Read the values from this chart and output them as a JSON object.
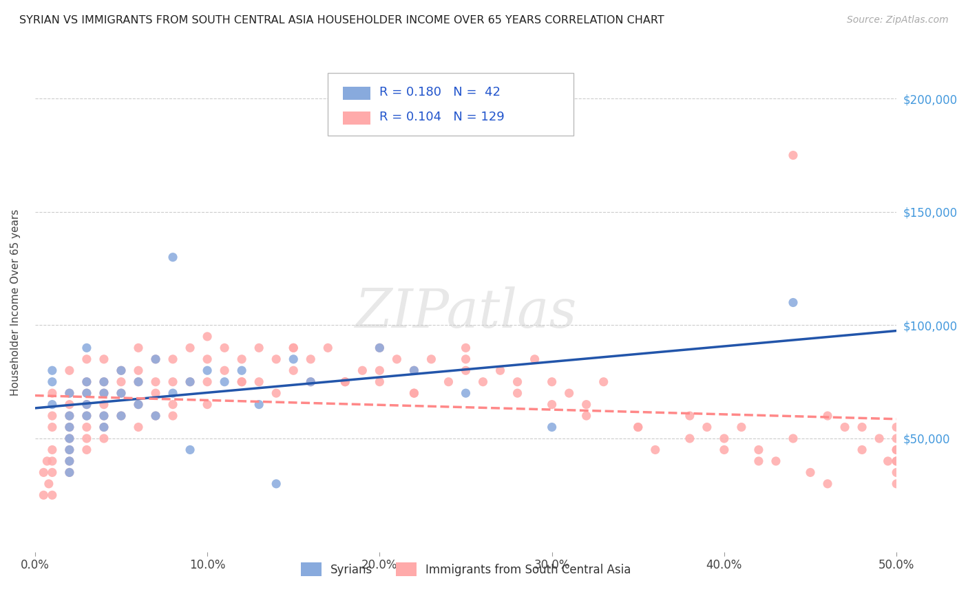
{
  "title": "SYRIAN VS IMMIGRANTS FROM SOUTH CENTRAL ASIA HOUSEHOLDER INCOME OVER 65 YEARS CORRELATION CHART",
  "source": "Source: ZipAtlas.com",
  "ylabel": "Householder Income Over 65 years",
  "r_syrian": 0.18,
  "n_syrian": 42,
  "r_south_central": 0.104,
  "n_south_central": 129,
  "xlim": [
    0.0,
    0.5
  ],
  "ylim": [
    0,
    220000
  ],
  "yticks": [
    0,
    50000,
    100000,
    150000,
    200000
  ],
  "ytick_labels": [
    "",
    "$50,000",
    "$100,000",
    "$150,000",
    "$200,000"
  ],
  "xtick_labels": [
    "0.0%",
    "10.0%",
    "20.0%",
    "30.0%",
    "40.0%",
    "50.0%"
  ],
  "xticks": [
    0.0,
    0.1,
    0.2,
    0.3,
    0.4,
    0.5
  ],
  "color_syrian": "#88AADD",
  "color_south_central": "#FFAAAA",
  "color_line_syrian": "#2255AA",
  "color_line_south_central": "#FF8888",
  "syrian_x": [
    0.01,
    0.01,
    0.01,
    0.02,
    0.02,
    0.02,
    0.02,
    0.02,
    0.02,
    0.02,
    0.03,
    0.03,
    0.03,
    0.03,
    0.03,
    0.04,
    0.04,
    0.04,
    0.04,
    0.05,
    0.05,
    0.05,
    0.06,
    0.06,
    0.07,
    0.07,
    0.08,
    0.08,
    0.09,
    0.09,
    0.1,
    0.11,
    0.12,
    0.13,
    0.14,
    0.15,
    0.16,
    0.2,
    0.22,
    0.25,
    0.3,
    0.44
  ],
  "syrian_y": [
    65000,
    80000,
    75000,
    70000,
    60000,
    55000,
    50000,
    45000,
    40000,
    35000,
    90000,
    75000,
    70000,
    65000,
    60000,
    75000,
    70000,
    60000,
    55000,
    80000,
    70000,
    60000,
    75000,
    65000,
    85000,
    60000,
    130000,
    70000,
    75000,
    45000,
    80000,
    75000,
    80000,
    65000,
    30000,
    85000,
    75000,
    90000,
    80000,
    70000,
    55000,
    110000
  ],
  "south_central_x": [
    0.005,
    0.005,
    0.007,
    0.008,
    0.01,
    0.01,
    0.01,
    0.01,
    0.01,
    0.01,
    0.01,
    0.02,
    0.02,
    0.02,
    0.02,
    0.02,
    0.02,
    0.02,
    0.02,
    0.02,
    0.03,
    0.03,
    0.03,
    0.03,
    0.03,
    0.03,
    0.03,
    0.04,
    0.04,
    0.04,
    0.04,
    0.04,
    0.04,
    0.05,
    0.05,
    0.05,
    0.05,
    0.06,
    0.06,
    0.06,
    0.06,
    0.07,
    0.07,
    0.07,
    0.07,
    0.08,
    0.08,
    0.08,
    0.09,
    0.09,
    0.1,
    0.1,
    0.1,
    0.11,
    0.11,
    0.12,
    0.12,
    0.13,
    0.13,
    0.14,
    0.14,
    0.15,
    0.15,
    0.16,
    0.16,
    0.17,
    0.18,
    0.19,
    0.2,
    0.2,
    0.21,
    0.22,
    0.22,
    0.23,
    0.24,
    0.25,
    0.25,
    0.26,
    0.27,
    0.28,
    0.29,
    0.3,
    0.31,
    0.32,
    0.33,
    0.35,
    0.36,
    0.38,
    0.39,
    0.4,
    0.41,
    0.42,
    0.43,
    0.44,
    0.45,
    0.46,
    0.47,
    0.48,
    0.49,
    0.495,
    0.15,
    0.18,
    0.2,
    0.22,
    0.1,
    0.12,
    0.08,
    0.06,
    0.04,
    0.03,
    0.25,
    0.28,
    0.3,
    0.32,
    0.35,
    0.38,
    0.4,
    0.42,
    0.44,
    0.46,
    0.48,
    0.5,
    0.5,
    0.5,
    0.5,
    0.5,
    0.5,
    0.5,
    0.5
  ],
  "south_central_y": [
    35000,
    25000,
    40000,
    30000,
    70000,
    60000,
    55000,
    45000,
    40000,
    35000,
    25000,
    80000,
    70000,
    65000,
    60000,
    55000,
    50000,
    45000,
    40000,
    35000,
    85000,
    75000,
    70000,
    65000,
    60000,
    55000,
    50000,
    85000,
    75000,
    70000,
    65000,
    60000,
    55000,
    80000,
    75000,
    70000,
    60000,
    90000,
    80000,
    75000,
    65000,
    85000,
    75000,
    70000,
    60000,
    85000,
    75000,
    65000,
    90000,
    75000,
    95000,
    85000,
    75000,
    90000,
    80000,
    85000,
    75000,
    90000,
    75000,
    85000,
    70000,
    90000,
    80000,
    85000,
    75000,
    90000,
    75000,
    80000,
    90000,
    75000,
    85000,
    80000,
    70000,
    85000,
    75000,
    90000,
    80000,
    75000,
    80000,
    75000,
    85000,
    75000,
    70000,
    65000,
    75000,
    55000,
    45000,
    60000,
    55000,
    50000,
    55000,
    45000,
    40000,
    50000,
    35000,
    30000,
    55000,
    45000,
    50000,
    40000,
    90000,
    75000,
    80000,
    70000,
    65000,
    75000,
    60000,
    55000,
    50000,
    45000,
    85000,
    70000,
    65000,
    60000,
    55000,
    50000,
    45000,
    40000,
    175000,
    60000,
    55000,
    50000,
    45000,
    40000,
    35000,
    30000,
    55000,
    45000,
    40000
  ]
}
